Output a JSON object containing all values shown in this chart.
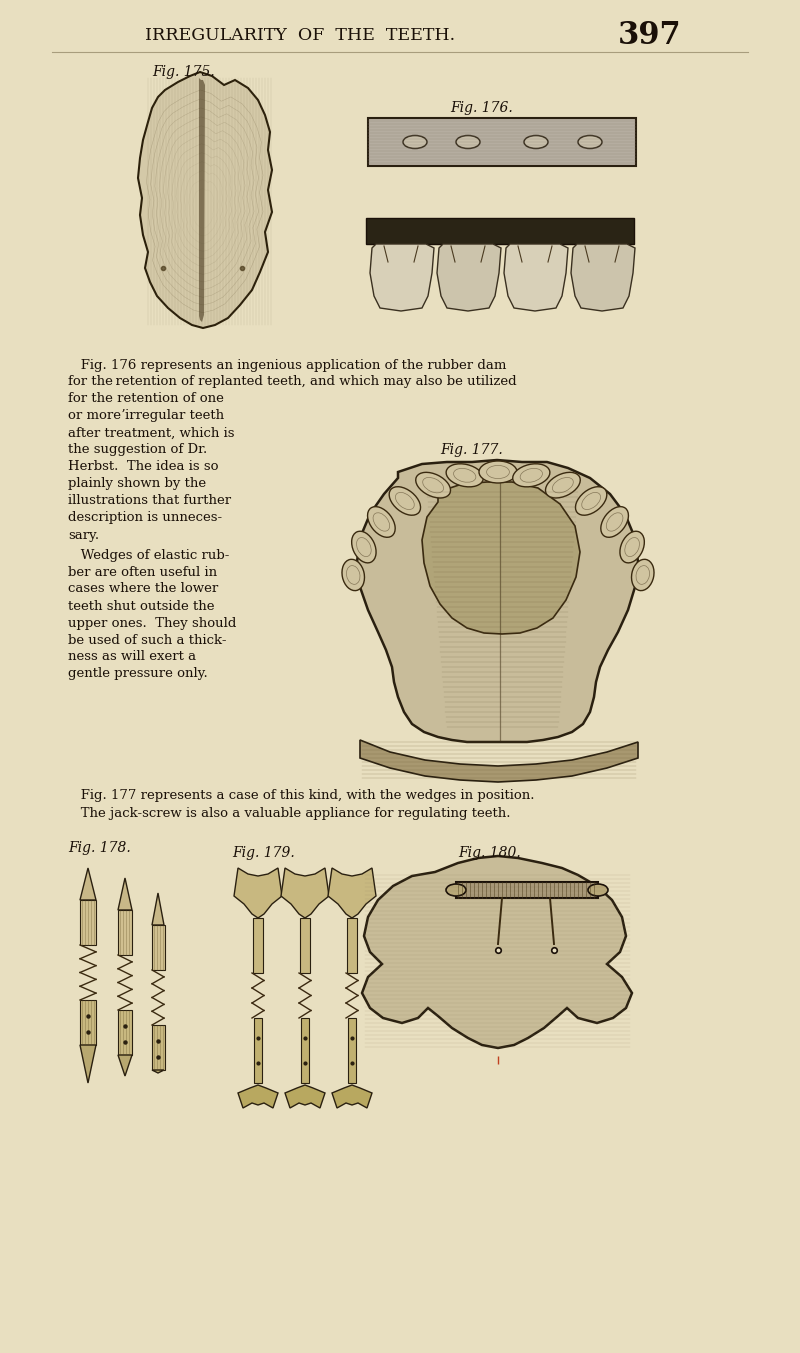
{
  "bg_color": "#e8dfc0",
  "title_text": "IRREGULARITY  OF  THE  TEETH.",
  "page_number": "397",
  "fig175_label": "Fig. 175.",
  "fig176_label": "Fig. 176.",
  "fig177_label": "Fig. 177.",
  "fig178_label": "Fig. 178.",
  "fig179_label": "Fig. 179.",
  "fig180_label": "Fig. 180.",
  "text_color": "#1a1008",
  "figsize": [
    8.0,
    13.53
  ],
  "dpi": 100,
  "left_text_lines": [
    [
      "   Fig. 176 represents an ingenious application of the rubber dam",
      68,
      365
    ],
    [
      "for the retention of replanted teeth, and which may also be utilized",
      68,
      381
    ],
    [
      "for the retention of one",
      68,
      399
    ],
    [
      "or moreʼirregular teeth",
      68,
      416
    ],
    [
      "after treatment, which is",
      68,
      433
    ],
    [
      "the suggestion of Dr.",
      68,
      450
    ],
    [
      "Herbst.  The idea is so",
      68,
      467
    ],
    [
      "plainly shown by the",
      68,
      484
    ],
    [
      "illustrations that further",
      68,
      501
    ],
    [
      "description is unneces-",
      68,
      518
    ],
    [
      "sary.",
      68,
      535
    ],
    [
      "   Wedges of elastic rub-",
      68,
      555
    ],
    [
      "ber are often useful in",
      68,
      572
    ],
    [
      "cases where the lower",
      68,
      589
    ],
    [
      "teeth shut outside the",
      68,
      606
    ],
    [
      "upper ones.  They should",
      68,
      623
    ],
    [
      "be used of such a thick-",
      68,
      640
    ],
    [
      "ness as will exert a",
      68,
      657
    ],
    [
      "gentle pressure only.",
      68,
      674
    ]
  ],
  "para2_lines": [
    [
      "   Fig. 177 represents a case of this kind, with the wedges in position.",
      68,
      796
    ],
    [
      "   The jack-screw is also a valuable appliance for regulating teeth.",
      68,
      813
    ]
  ]
}
